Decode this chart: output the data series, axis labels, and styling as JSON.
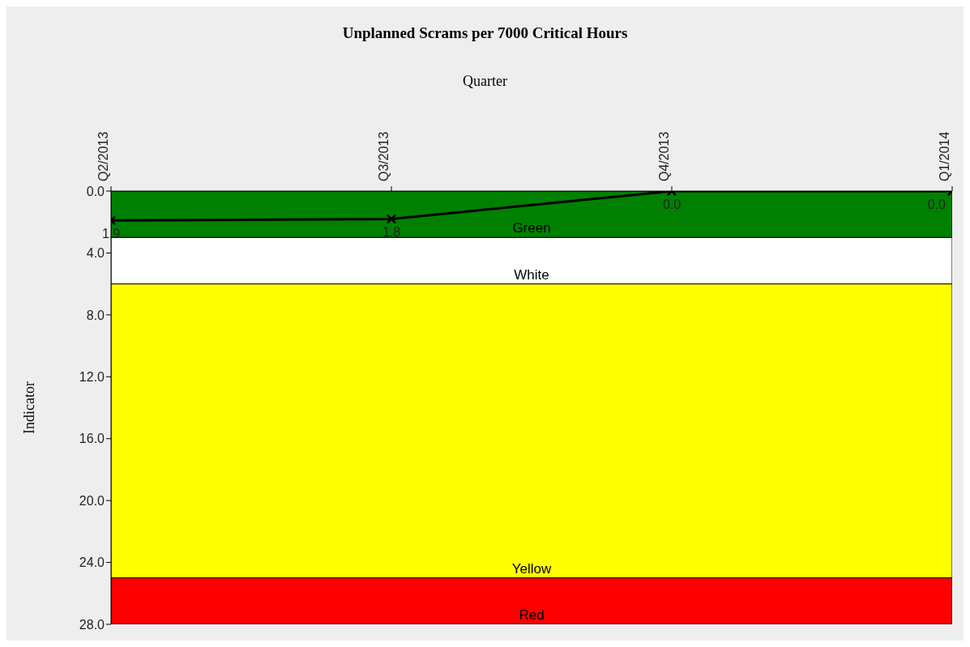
{
  "chart_data": {
    "type": "line",
    "title": "Unplanned Scrams per 7000 Critical Hours",
    "xlabel": "Quarter",
    "ylabel": "Indicator",
    "categories": [
      "Q2/2013",
      "Q3/2013",
      "Q4/2013",
      "Q1/2014"
    ],
    "values": [
      1.9,
      1.8,
      0.0,
      0.0
    ],
    "color": "#000000",
    "marker": "cross",
    "value_labels": [
      "1.9",
      "1.8",
      "0.0",
      "0.0"
    ],
    "ylim": [
      28,
      0
    ],
    "yticks": [
      {
        "value": 0,
        "label": "0.0"
      },
      {
        "value": 4,
        "label": "4.0"
      },
      {
        "value": 8,
        "label": "8.0"
      },
      {
        "value": 12,
        "label": "12.0"
      },
      {
        "value": 16,
        "label": "16.0"
      },
      {
        "value": 20,
        "label": "20.0"
      },
      {
        "value": 24,
        "label": "24.0"
      },
      {
        "value": 28,
        "label": "28.0"
      }
    ],
    "bands": [
      {
        "axis": "y",
        "from": 0,
        "to": 3,
        "label": "Green",
        "color": "#008000"
      },
      {
        "axis": "y",
        "from": 3,
        "to": 6,
        "label": "White",
        "color": "#ffffff"
      },
      {
        "axis": "y",
        "from": 6,
        "to": 25,
        "label": "Yellow",
        "color": "#ffff00"
      },
      {
        "axis": "y",
        "from": 25,
        "to": 28,
        "label": "Red",
        "color": "#ff0000"
      }
    ],
    "grid": false,
    "legend": false
  }
}
